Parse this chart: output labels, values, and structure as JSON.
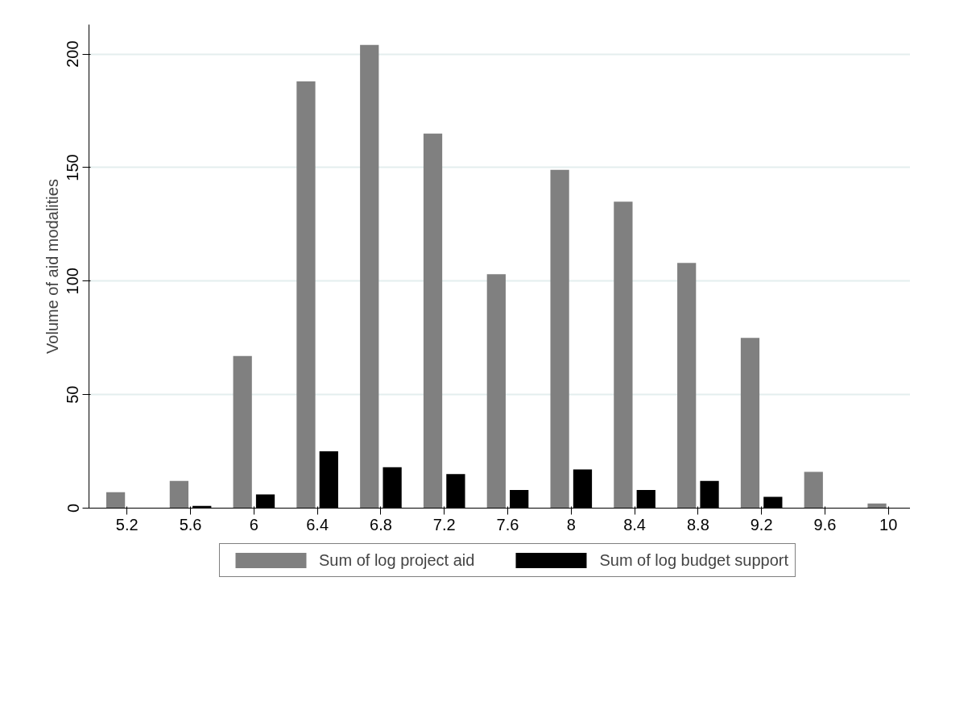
{
  "chart_data": {
    "type": "bar",
    "ylabel": "Volume of aid modalities",
    "categories": [
      "5.2",
      "5.6",
      "6",
      "6.4",
      "6.8",
      "7.2",
      "7.6",
      "8",
      "8.4",
      "8.8",
      "9.2",
      "9.6",
      "10"
    ],
    "series": [
      {
        "name": "Sum of log project aid",
        "color": "#808080",
        "values": [
          7,
          12,
          67,
          188,
          204,
          165,
          103,
          149,
          135,
          108,
          75,
          16,
          2
        ]
      },
      {
        "name": "Sum of log budget support",
        "color": "#000000",
        "values": [
          0,
          1,
          6,
          25,
          18,
          15,
          8,
          17,
          8,
          12,
          5,
          0,
          0
        ]
      }
    ],
    "ylim": [
      0,
      213
    ],
    "yticks": [
      0,
      50,
      100,
      150,
      200
    ],
    "grid": "y",
    "legend": "bottom"
  }
}
